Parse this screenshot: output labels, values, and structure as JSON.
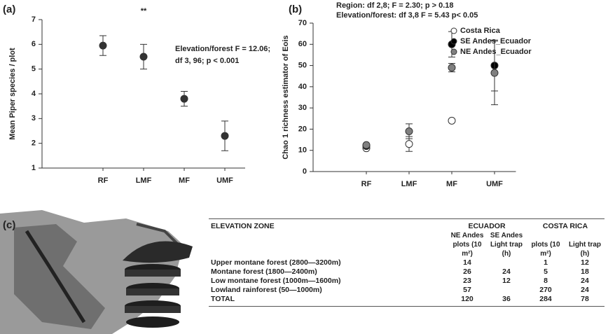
{
  "chart_data": [
    {
      "type": "scatter",
      "panel": "(a)",
      "ylabel": "Mean Piper species / plot",
      "categories": [
        "RF",
        "LMF",
        "MF",
        "UMF"
      ],
      "values": [
        5.95,
        5.5,
        3.8,
        2.3
      ],
      "errors": [
        0.4,
        0.5,
        0.3,
        0.6
      ],
      "color": "#333333",
      "ylim": [
        1,
        7
      ],
      "yticks": [
        1,
        2,
        3,
        4,
        5,
        6,
        7
      ],
      "annotations": [
        "**",
        "Elevation/forest F = 12.06;",
        "df  3, 96; p < 0.001"
      ]
    },
    {
      "type": "scatter",
      "panel": "(b)",
      "ylabel": "Chao 1 richness estimator of Eois",
      "categories": [
        "RF",
        "LMF",
        "MF",
        "UMF"
      ],
      "series": [
        {
          "name": "Costa Rica",
          "color": "#ffffff",
          "values": [
            11,
            13,
            24,
            null
          ],
          "errors": [
            null,
            3.5,
            null,
            null
          ]
        },
        {
          "name": "SE Andes_Ecuador",
          "color": "#000000",
          "values": [
            12,
            null,
            60,
            50
          ],
          "errors": [
            null,
            null,
            6,
            12
          ]
        },
        {
          "name": "NE Andes_Ecuador",
          "color": "#808080",
          "values": [
            12.5,
            19,
            49,
            46.5
          ],
          "errors": [
            null,
            3.5,
            2,
            15
          ]
        }
      ],
      "ylim": [
        0,
        70
      ],
      "yticks": [
        0,
        10,
        20,
        30,
        40,
        50,
        60,
        70
      ],
      "annotations": [
        "Region:  df 2,8;  F = 2.30; p > 0.18",
        "Elevation/forest:  df 3,8  F = 5.43 p< 0.05"
      ]
    }
  ],
  "panel_c": "(c)",
  "table": {
    "header": [
      "ELEVATION ZONE",
      "ECUADOR",
      "COSTA RICA"
    ],
    "subheader": [
      "NE Andes plots (10 m²)",
      "SE Andes Light trap (h)",
      "plots (10 m²)",
      "Light trap (h)"
    ],
    "rows": [
      [
        "Upper montane forest (2800—3200m)",
        14,
        null,
        1,
        12
      ],
      [
        "Montane forest (1800—2400m)",
        26,
        24,
        5,
        18
      ],
      [
        "Low montane forest (1000m—1600m)",
        23,
        12,
        8,
        24
      ],
      [
        "Lowland rainforest (50—1000m)",
        57,
        null,
        270,
        24
      ],
      [
        "TOTAL",
        120,
        36,
        284,
        78
      ]
    ]
  }
}
